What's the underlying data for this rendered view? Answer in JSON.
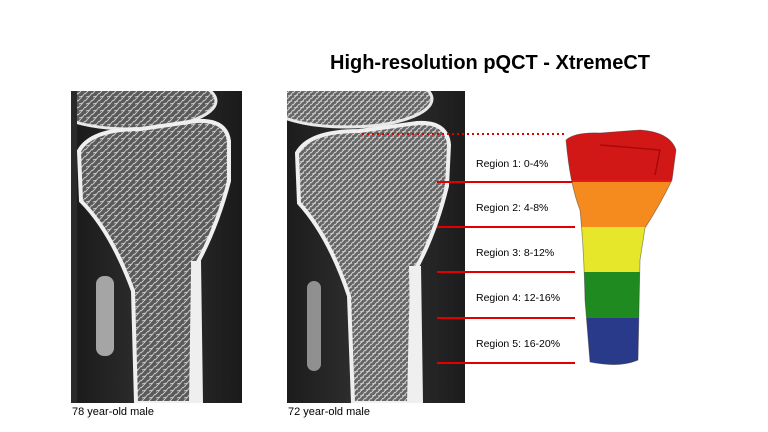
{
  "title": "High-resolution pQCT - XtremeCT",
  "scans": [
    {
      "caption": "78 year-old male"
    },
    {
      "caption": "72 year-old male"
    }
  ],
  "regions": [
    {
      "label": "Region 1: 0-4%",
      "color": "#e41a1a"
    },
    {
      "label": "Region 2: 4-8%",
      "color": "#f58a1f"
    },
    {
      "label": "Region 3: 8-12%",
      "color": "#e6e62a"
    },
    {
      "label": "Region 4: 12-16%",
      "color": "#1f8a1f"
    },
    {
      "label": "Region 5: 16-20%",
      "color": "#2a3a8a"
    }
  ],
  "accent_color": "#e00000"
}
